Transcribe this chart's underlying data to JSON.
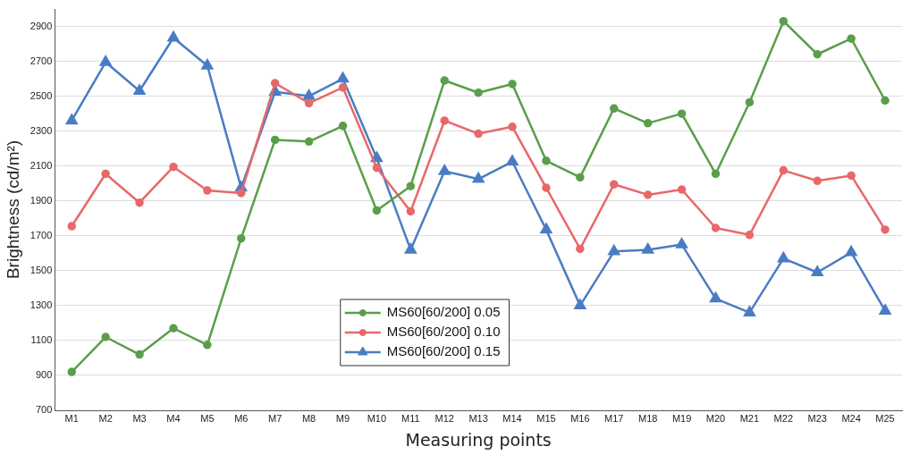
{
  "chart_data": {
    "type": "line",
    "xlabel": "Measuring points",
    "ylabel": "Brightness (cd/m²)",
    "categories": [
      "M1",
      "M2",
      "M3",
      "M4",
      "M5",
      "M6",
      "M7",
      "M8",
      "M9",
      "M10",
      "M11",
      "M12",
      "M13",
      "M14",
      "M15",
      "M16",
      "M17",
      "M18",
      "M19",
      "M20",
      "M21",
      "M22",
      "M23",
      "M24",
      "M25"
    ],
    "series": [
      {
        "name": "MS60[60/200] 0.05",
        "color": "#5a9e4b",
        "marker": "circle",
        "values": [
          920,
          1120,
          1020,
          1170,
          1075,
          1685,
          2250,
          2240,
          2330,
          1845,
          1985,
          2590,
          2520,
          2570,
          2130,
          2035,
          2430,
          2345,
          2400,
          2055,
          2465,
          2930,
          2740,
          2830,
          2475
        ]
      },
      {
        "name": "MS60[60/200] 0.10",
        "color": "#e8686a",
        "marker": "circle",
        "values": [
          1755,
          2055,
          1890,
          2095,
          1960,
          1945,
          2575,
          2460,
          2550,
          2090,
          1840,
          2360,
          2285,
          2325,
          1975,
          1625,
          1995,
          1935,
          1965,
          1745,
          1705,
          2075,
          2015,
          2045,
          1735
        ]
      },
      {
        "name": "MS60[60/200] 0.15",
        "color": "#4a7cc4",
        "marker": "triangle",
        "values": [
          2360,
          2695,
          2530,
          2835,
          2675,
          1975,
          2525,
          2500,
          2600,
          2145,
          1620,
          2070,
          2025,
          2125,
          1735,
          1300,
          1610,
          1620,
          1650,
          1340,
          1260,
          1570,
          1490,
          1605,
          1270
        ]
      }
    ],
    "ylim": [
      700,
      3000
    ],
    "yticks": [
      700,
      900,
      1100,
      1300,
      1500,
      1700,
      1900,
      2100,
      2300,
      2500,
      2700,
      2900
    ],
    "grid": "y",
    "legend": "bottom center",
    "line_style": "solid"
  }
}
